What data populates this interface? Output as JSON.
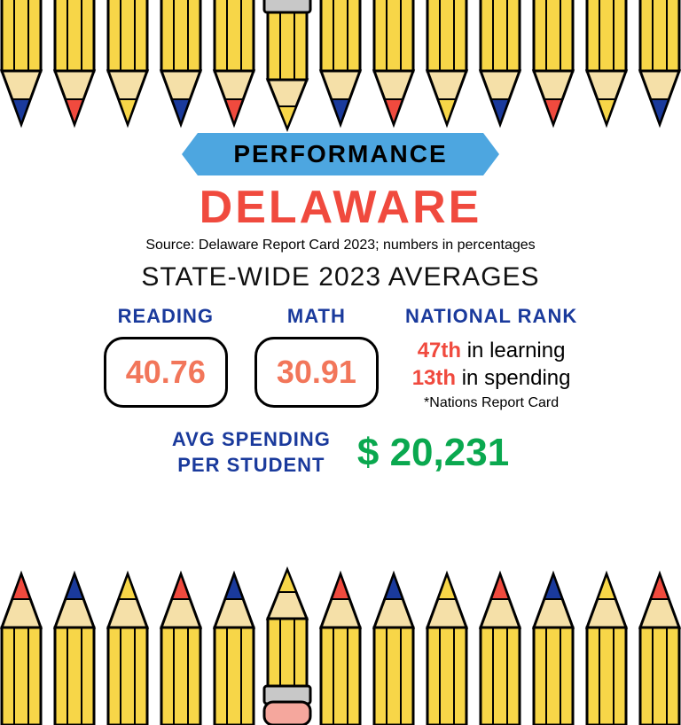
{
  "banner": {
    "label": "PERFORMANCE",
    "bg_color": "#4da6e0"
  },
  "state_name": "DELAWARE",
  "source": "Source: Delaware Report Card 2023; numbers in percentages",
  "averages_title": "STATE-WIDE 2023 AVERAGES",
  "stats": {
    "reading": {
      "label": "READING",
      "value": "40.76"
    },
    "math": {
      "label": "MATH",
      "value": "30.91"
    },
    "rank": {
      "label": "NATIONAL RANK",
      "learning_rank": "47th",
      "learning_text": " in learning",
      "spending_rank": "13th",
      "spending_text": " in spending",
      "note": "*Nations Report Card"
    }
  },
  "spending": {
    "label_line1": "AVG SPENDING",
    "label_line2": "PER STUDENT",
    "value": "$ 20,231"
  },
  "colors": {
    "accent_red": "#f04a3e",
    "accent_orange": "#f2765a",
    "label_blue": "#1a3a9c",
    "value_green": "#0aa84f",
    "pencil_yellow": "#f7d648",
    "pencil_tip_wood": "#f5e0a8",
    "eraser_pink": "#f5a79d",
    "ferrule": "#c8c8c8"
  },
  "pencils": {
    "top_lead_colors": [
      "#1a3a9c",
      "#f04a3e",
      "#f7d648",
      "#1a3a9c",
      "#f04a3e",
      "#f7d648",
      "#1a3a9c",
      "#f04a3e",
      "#f7d648",
      "#1a3a9c",
      "#f04a3e",
      "#f7d648",
      "#1a3a9c"
    ],
    "bottom_lead_colors": [
      "#f04a3e",
      "#1a3a9c",
      "#f7d648",
      "#f04a3e",
      "#1a3a9c",
      "#f7d648",
      "#f04a3e",
      "#1a3a9c",
      "#f7d648",
      "#f04a3e",
      "#1a3a9c",
      "#f7d648",
      "#f04a3e"
    ]
  }
}
